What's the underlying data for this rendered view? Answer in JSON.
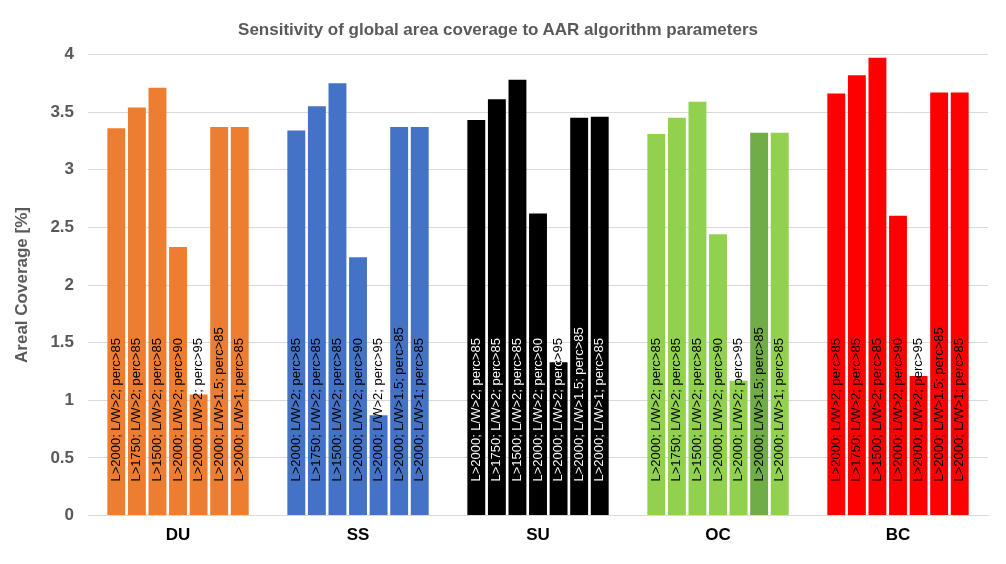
{
  "chart_data": {
    "type": "bar",
    "title": "Sensitivity of global area coverage to AAR algorithm parameters",
    "ylabel": "Areal Coverage [%]",
    "categories": [
      "DU",
      "SS",
      "SU",
      "OC",
      "BC"
    ],
    "series": [
      {
        "name": "L>2000; L/W>2; perc>85",
        "colors": [
          "#ed7d31",
          "#4472c4",
          "#000000",
          "#92d050",
          "#ff0000"
        ],
        "values": [
          3.36,
          3.34,
          3.43,
          3.31,
          3.66
        ]
      },
      {
        "name": "L>1750; L/W>2; perc>85",
        "colors": [
          "#ed7d31",
          "#4472c4",
          "#000000",
          "#92d050",
          "#ff0000"
        ],
        "values": [
          3.54,
          3.55,
          3.61,
          3.45,
          3.82
        ]
      },
      {
        "name": "L>1500; L/W>2; perc>85",
        "colors": [
          "#ed7d31",
          "#4472c4",
          "#000000",
          "#92d050",
          "#ff0000"
        ],
        "values": [
          3.71,
          3.75,
          3.78,
          3.59,
          3.97
        ]
      },
      {
        "name": "L>2000; L/W>2; perc>90",
        "colors": [
          "#ed7d31",
          "#4472c4",
          "#000000",
          "#92d050",
          "#ff0000"
        ],
        "values": [
          2.33,
          2.24,
          2.62,
          2.44,
          2.6
        ]
      },
      {
        "name": "L>2000; L/W>2; perc>95",
        "colors": [
          "#ed7d31",
          "#4472c4",
          "#000000",
          "#92d050",
          "#ff0000"
        ],
        "values": [
          1.05,
          0.87,
          1.33,
          1.17,
          1.21
        ]
      },
      {
        "name": "L>2000; L/W>1.5; perc>85",
        "colors": [
          "#ed7d31",
          "#4472c4",
          "#000000",
          "#70ad47",
          "#ff0000"
        ],
        "values": [
          3.37,
          3.37,
          3.45,
          3.32,
          3.67
        ]
      },
      {
        "name": "L>2000; L/W>1; perc>85",
        "colors": [
          "#ed7d31",
          "#4472c4",
          "#000000",
          "#92d050",
          "#ff0000"
        ],
        "values": [
          3.37,
          3.37,
          3.46,
          3.32,
          3.67
        ]
      }
    ],
    "ylim": [
      0,
      4
    ],
    "yticks": [
      0,
      0.5,
      1,
      1.5,
      2,
      2.5,
      3,
      3.5,
      4
    ],
    "grid": "y",
    "legend": false
  }
}
